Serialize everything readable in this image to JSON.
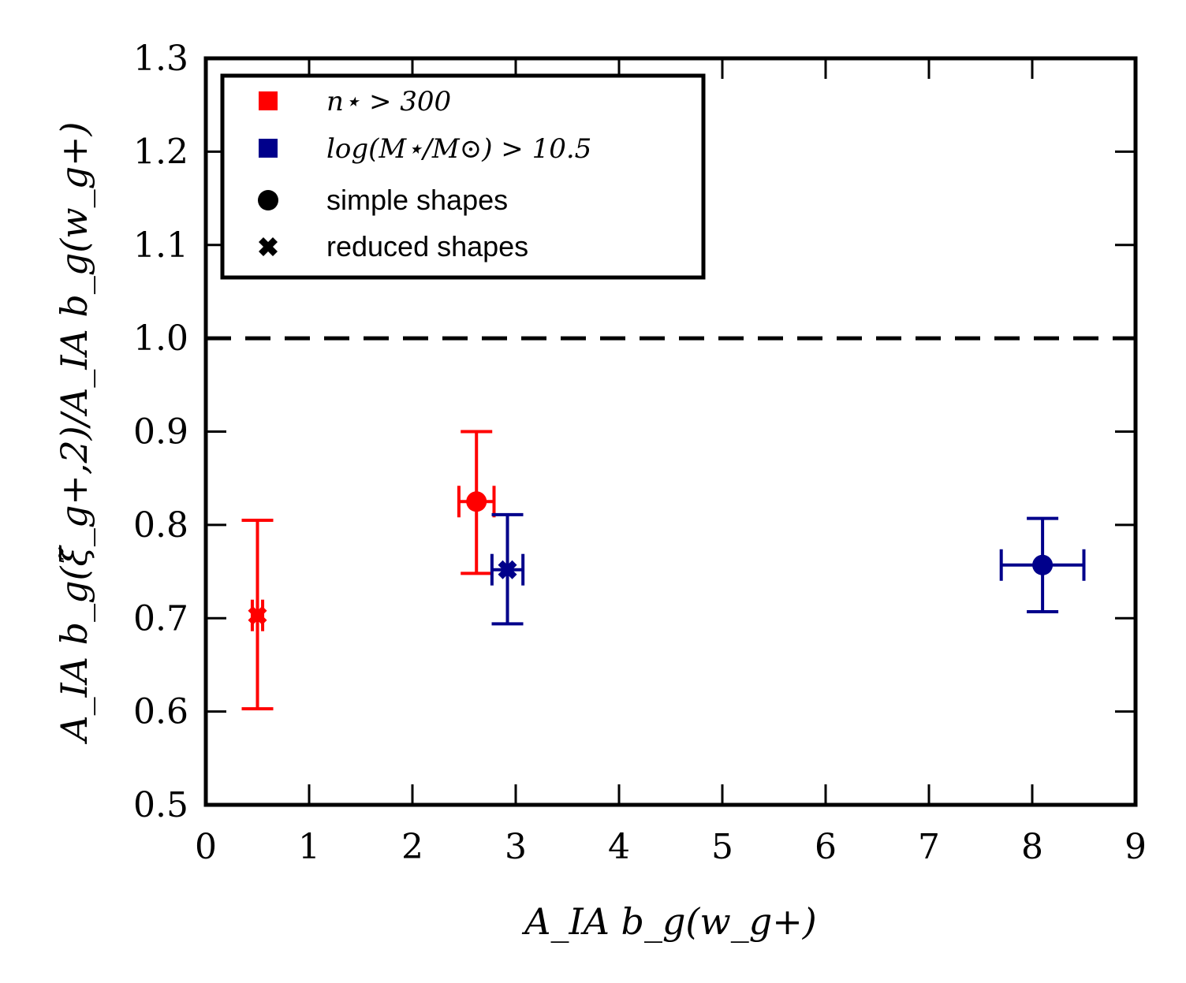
{
  "chart_data": {
    "type": "scatter",
    "xlabel": "A_IA b_g(w_g+)",
    "ylabel": "A_IA b_g(ξ̃_g+,2)/A_IA b_g(w_g+)",
    "xlim": [
      0,
      9
    ],
    "ylim": [
      0.5,
      1.3
    ],
    "xticks": [
      "0",
      "1",
      "2",
      "3",
      "4",
      "5",
      "6",
      "7",
      "8",
      "9"
    ],
    "yticks": [
      "0.5",
      "0.6",
      "0.7",
      "0.8",
      "0.9",
      "1.0",
      "1.1",
      "1.2",
      "1.3"
    ],
    "reference_line": {
      "y": 1.0,
      "style": "dashed",
      "color": "#000000"
    },
    "legend": {
      "position": "top-left",
      "entries": [
        {
          "label": "n⋆ > 300",
          "marker": "square",
          "color": "#ff0000",
          "math": true
        },
        {
          "label": "log(M⋆/M⊙) > 10.5",
          "marker": "square",
          "color": "#00008b",
          "math": true
        },
        {
          "label": "simple shapes",
          "marker": "circle",
          "color": "#000000",
          "math": false
        },
        {
          "label": "reduced shapes",
          "marker": "x",
          "color": "#000000",
          "math": false
        }
      ]
    },
    "series": [
      {
        "name": "n⋆ > 300, reduced shapes",
        "color": "#ff0000",
        "marker": "x",
        "x": 0.5,
        "y": 0.703,
        "xerr": 0.05,
        "yerr_low": 0.1,
        "yerr_high": 0.102
      },
      {
        "name": "n⋆ > 300, simple shapes",
        "color": "#ff0000",
        "marker": "circle",
        "x": 2.62,
        "y": 0.825,
        "xerr": 0.17,
        "yerr_low": 0.077,
        "yerr_high": 0.075
      },
      {
        "name": "log(M⋆/M⊙) > 10.5, reduced shapes",
        "color": "#00008b",
        "marker": "x",
        "x": 2.92,
        "y": 0.752,
        "xerr": 0.15,
        "yerr_low": 0.058,
        "yerr_high": 0.059
      },
      {
        "name": "log(M⋆/M⊙) > 10.5, simple shapes",
        "color": "#00008b",
        "marker": "circle",
        "x": 8.1,
        "y": 0.757,
        "xerr": 0.4,
        "yerr_low": 0.05,
        "yerr_high": 0.05
      }
    ]
  }
}
